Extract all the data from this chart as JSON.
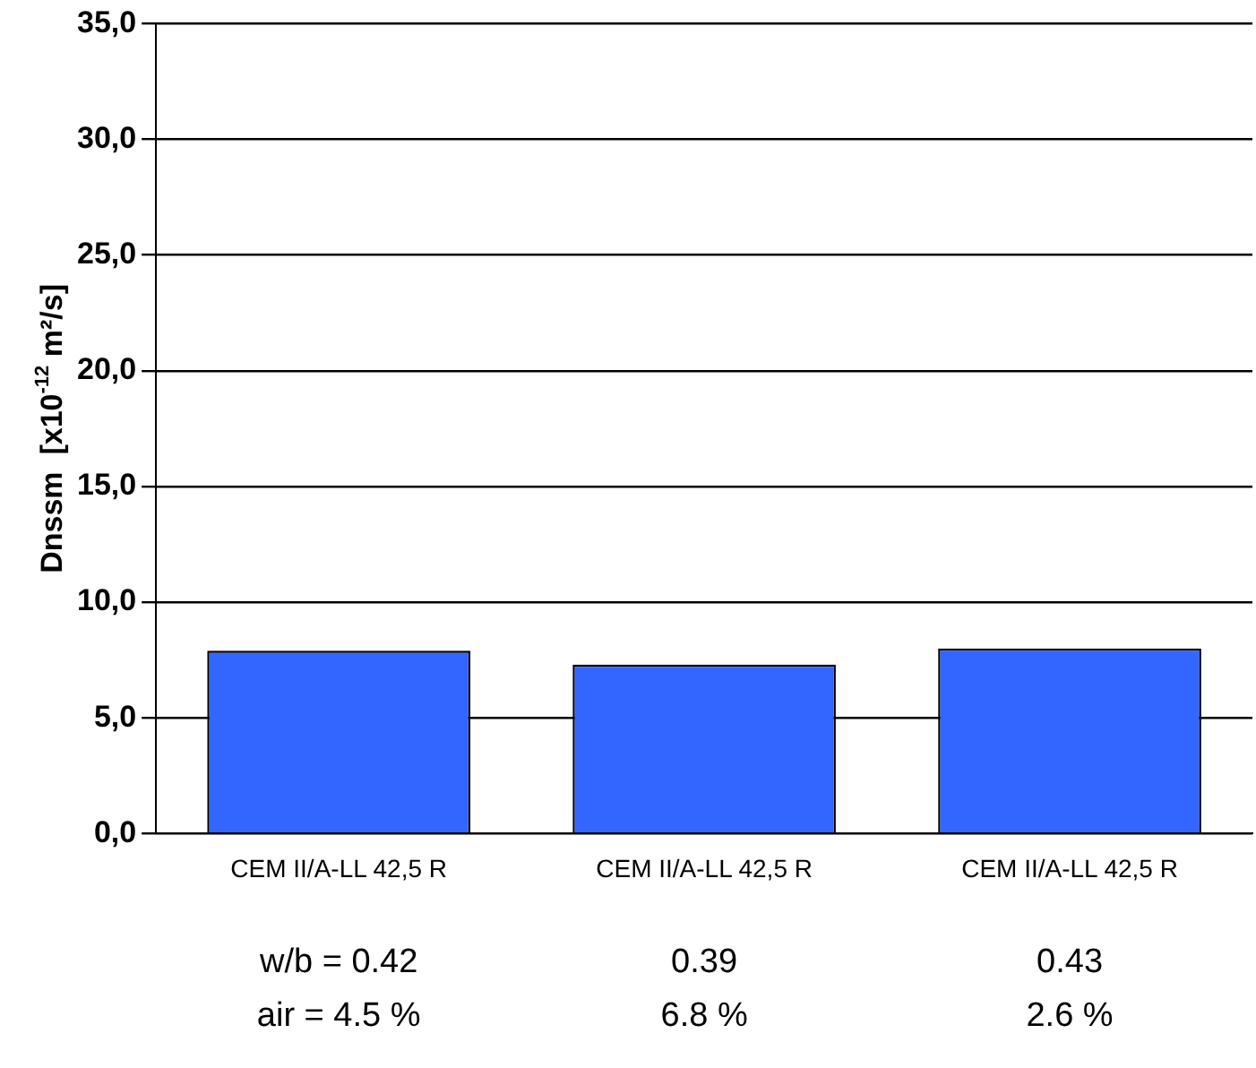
{
  "chart_data": {
    "type": "bar",
    "ylabel": "Dnssm  [x10$^{-12}$ m²/s]",
    "categories": [
      "CEM II/A-LL 42,5 R",
      "CEM II/A-LL 42,5 R",
      "CEM II/A-LL 42,5 R"
    ],
    "values": [
      7.9,
      7.3,
      8.0
    ],
    "color": "#3366ff",
    "ylim": [
      0,
      35
    ],
    "yticks": [
      {
        "value": 0,
        "label": "0,0"
      },
      {
        "value": 5,
        "label": "5,0"
      },
      {
        "value": 10,
        "label": "10,0"
      },
      {
        "value": 15,
        "label": "15,0"
      },
      {
        "value": 20,
        "label": "20,0"
      },
      {
        "value": 25,
        "label": "25,0"
      },
      {
        "value": 30,
        "label": "30,0"
      },
      {
        "value": 35,
        "label": "35,0"
      }
    ],
    "grid": "y",
    "legend": false,
    "annotations": [
      "w/b = 0.42",
      "0.39",
      "0.43",
      "air = 4.5 %",
      "6.8 %",
      "2.6 %"
    ]
  }
}
